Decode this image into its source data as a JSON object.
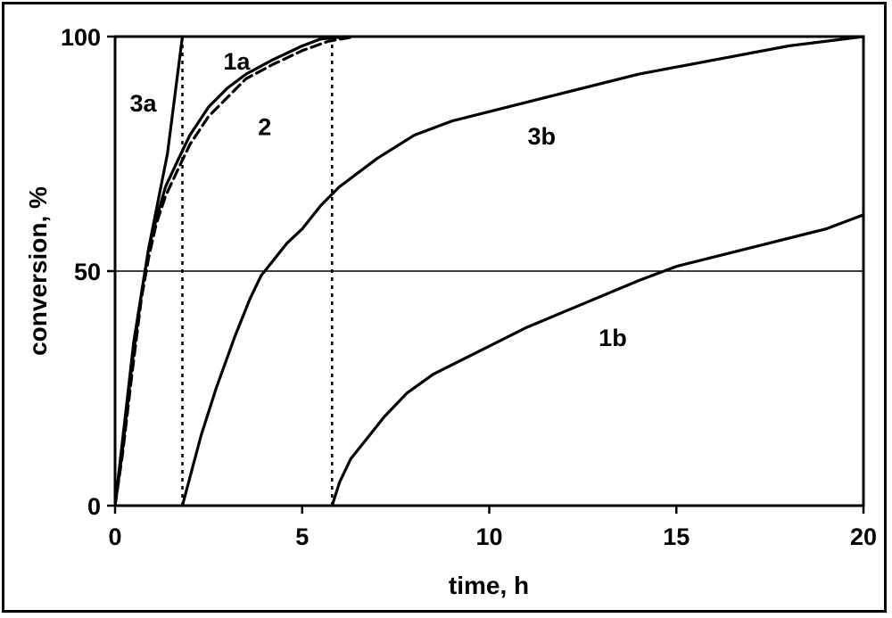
{
  "chart_data": {
    "type": "line",
    "title": "",
    "xlabel": "time, h",
    "ylabel": "conversion, %",
    "xlim": [
      0,
      20
    ],
    "ylim": [
      0,
      100
    ],
    "xticks": [
      0,
      5,
      10,
      15,
      20
    ],
    "yticks": [
      0,
      50,
      100
    ],
    "grid": "y-at-50",
    "series": [
      {
        "name": "3a",
        "style": "solid",
        "label_at": [
          0.75,
          84
        ],
        "points": [
          [
            0,
            0
          ],
          [
            0.5,
            35
          ],
          [
            0.9,
            55
          ],
          [
            1.4,
            75
          ],
          [
            1.8,
            100
          ]
        ]
      },
      {
        "name": "1a",
        "style": "solid",
        "label_at": [
          3.25,
          93
        ],
        "points": [
          [
            0,
            0
          ],
          [
            0.2,
            12
          ],
          [
            0.45,
            30
          ],
          [
            0.7,
            45
          ],
          [
            0.9,
            55
          ],
          [
            1.1,
            61
          ],
          [
            1.35,
            68
          ],
          [
            1.7,
            74
          ],
          [
            2.0,
            79
          ],
          [
            2.5,
            85
          ],
          [
            3.0,
            89
          ],
          [
            3.5,
            92
          ],
          [
            4.2,
            95
          ],
          [
            5.0,
            98
          ],
          [
            5.5,
            99.5
          ],
          [
            6.2,
            100
          ]
        ]
      },
      {
        "name": "2",
        "style": "dashed",
        "label_at": [
          4.0,
          79
        ],
        "points": [
          [
            0,
            0
          ],
          [
            0.2,
            11
          ],
          [
            0.45,
            28
          ],
          [
            0.7,
            44
          ],
          [
            0.9,
            53
          ],
          [
            1.1,
            60
          ],
          [
            1.35,
            66
          ],
          [
            1.7,
            72
          ],
          [
            2.0,
            77
          ],
          [
            2.5,
            83
          ],
          [
            3.0,
            87
          ],
          [
            3.5,
            91
          ],
          [
            4.2,
            94
          ],
          [
            5.0,
            97
          ],
          [
            5.7,
            99
          ],
          [
            6.4,
            100
          ]
        ]
      },
      {
        "name": "3b",
        "style": "solid",
        "label_at": [
          11.4,
          77
        ],
        "points": [
          [
            1.8,
            0
          ],
          [
            2.0,
            6
          ],
          [
            2.3,
            15
          ],
          [
            2.7,
            25
          ],
          [
            3.2,
            36
          ],
          [
            3.6,
            44
          ],
          [
            3.9,
            49
          ],
          [
            4.2,
            52
          ],
          [
            4.6,
            56
          ],
          [
            5.0,
            59
          ],
          [
            5.5,
            64
          ],
          [
            6.0,
            68
          ],
          [
            7.0,
            74
          ],
          [
            8.0,
            79
          ],
          [
            9.0,
            82
          ],
          [
            10.0,
            84
          ],
          [
            12.0,
            88
          ],
          [
            14.0,
            92
          ],
          [
            16.0,
            95
          ],
          [
            18.0,
            98
          ],
          [
            20.0,
            100
          ]
        ]
      },
      {
        "name": "1b",
        "style": "solid",
        "label_at": [
          13.3,
          34
        ],
        "points": [
          [
            5.8,
            0
          ],
          [
            6.0,
            5
          ],
          [
            6.3,
            10
          ],
          [
            6.7,
            14
          ],
          [
            7.2,
            19
          ],
          [
            7.8,
            24
          ],
          [
            8.5,
            28
          ],
          [
            9.5,
            32
          ],
          [
            11.0,
            38
          ],
          [
            12.5,
            43
          ],
          [
            14.0,
            48
          ],
          [
            15.0,
            51
          ],
          [
            16.0,
            53
          ],
          [
            17.5,
            56
          ],
          [
            19.0,
            59
          ],
          [
            20.0,
            62
          ]
        ]
      }
    ],
    "markers": [
      {
        "x": 1.8,
        "y_from": 0,
        "y_to": 100,
        "style": "dotted"
      },
      {
        "x": 5.8,
        "y_from": 0,
        "y_to": 100,
        "style": "dotted"
      }
    ]
  }
}
